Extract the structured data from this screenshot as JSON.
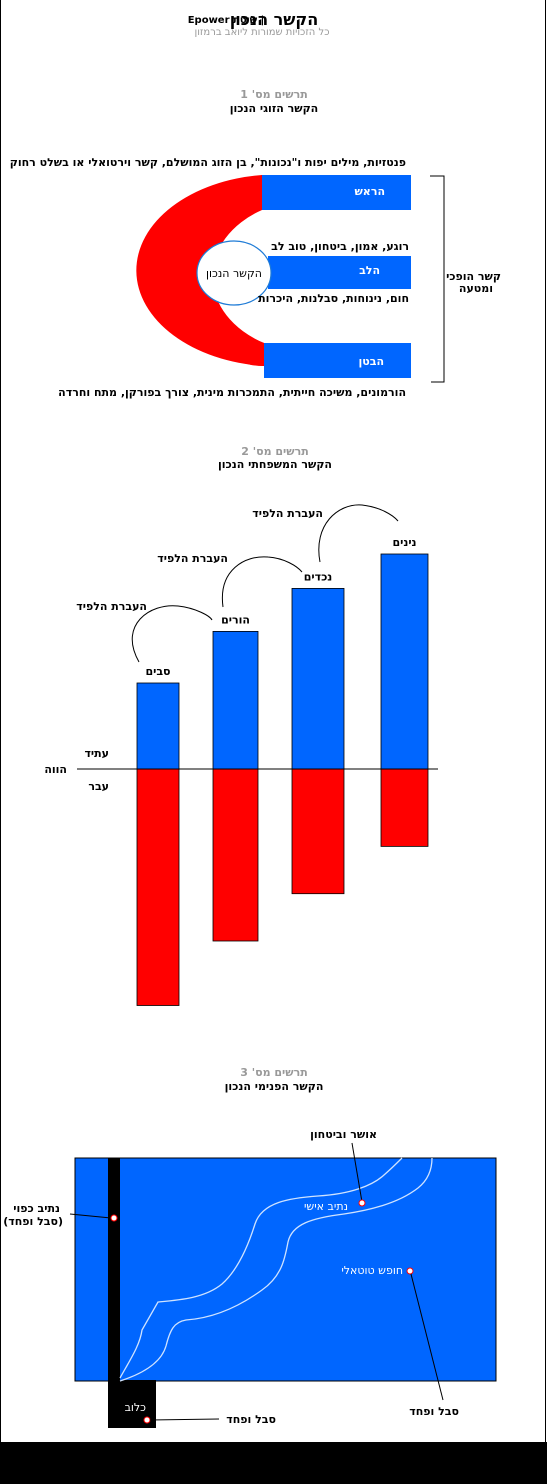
{
  "header": {
    "title": "הקשר הנכון",
    "brand": "Epower שיטת |",
    "copyright": "כל הזכויות שמורות ליואב ברמזון"
  },
  "diagram1": {
    "number": "תרשים מס' 1",
    "title": "הקשר הזוגי הנכון",
    "fantasy_text": "פנטזיות, מילים יפות ו\"נכונות\", בן הזוג המושלם, קשר וירטואלי או בשלט רחוק",
    "head_label": "הראש",
    "heart_label": "הלב",
    "belly_label": "הבטן",
    "right_connection_label": "הקשר הנכון",
    "heart_top_text": "רוגע, אמון, ביטחון, טוב לב",
    "heart_bottom_text": "חום, נינוחות, סבלנות, היכרות",
    "belly_text": "הורמונים, משיכה חייתית, התמכרות מינית, צורך בפורקן, מתח וחרדה",
    "bracket_label_line1": "קשר הופכי",
    "bracket_label_line2": "ומטעה",
    "colors": {
      "blue": "#0066ff",
      "red": "#ff0000",
      "circle": "#1e7bd6"
    }
  },
  "diagram2": {
    "number": "תרשים מס' 2",
    "title": "הקשר המשפחתי הנכון",
    "present_label": "הווה",
    "future_label": "עתיד",
    "past_label": "עבר",
    "transfer_labels": [
      "העברת הלפיד",
      "העברת הלפיד",
      "העברת הלפיד"
    ],
    "generations": [
      {
        "name": "סבים",
        "future": 1.0,
        "past": 2.75
      },
      {
        "name": "הורים",
        "future": 1.6,
        "past": 2.0
      },
      {
        "name": "נכדים",
        "future": 2.1,
        "past": 1.45
      },
      {
        "name": "נינים",
        "future": 2.5,
        "past": 0.9
      }
    ]
  },
  "diagram3": {
    "number": "תרשים מס' 3",
    "title": "הקשר הפנימי  הנכון",
    "wealth_label": "אושר וביטחון",
    "personal_path_label": "נתיב אישי",
    "forced_path_line1": "נתיב כפוי",
    "forced_path_line2": "(סבל ופחד)",
    "total_freedom_label": "חופש טוטאלי",
    "suffering_right_label": "סבל ופחד",
    "prison_label": "כלוב",
    "suffering_bottom_label": "סבל ופחד"
  }
}
